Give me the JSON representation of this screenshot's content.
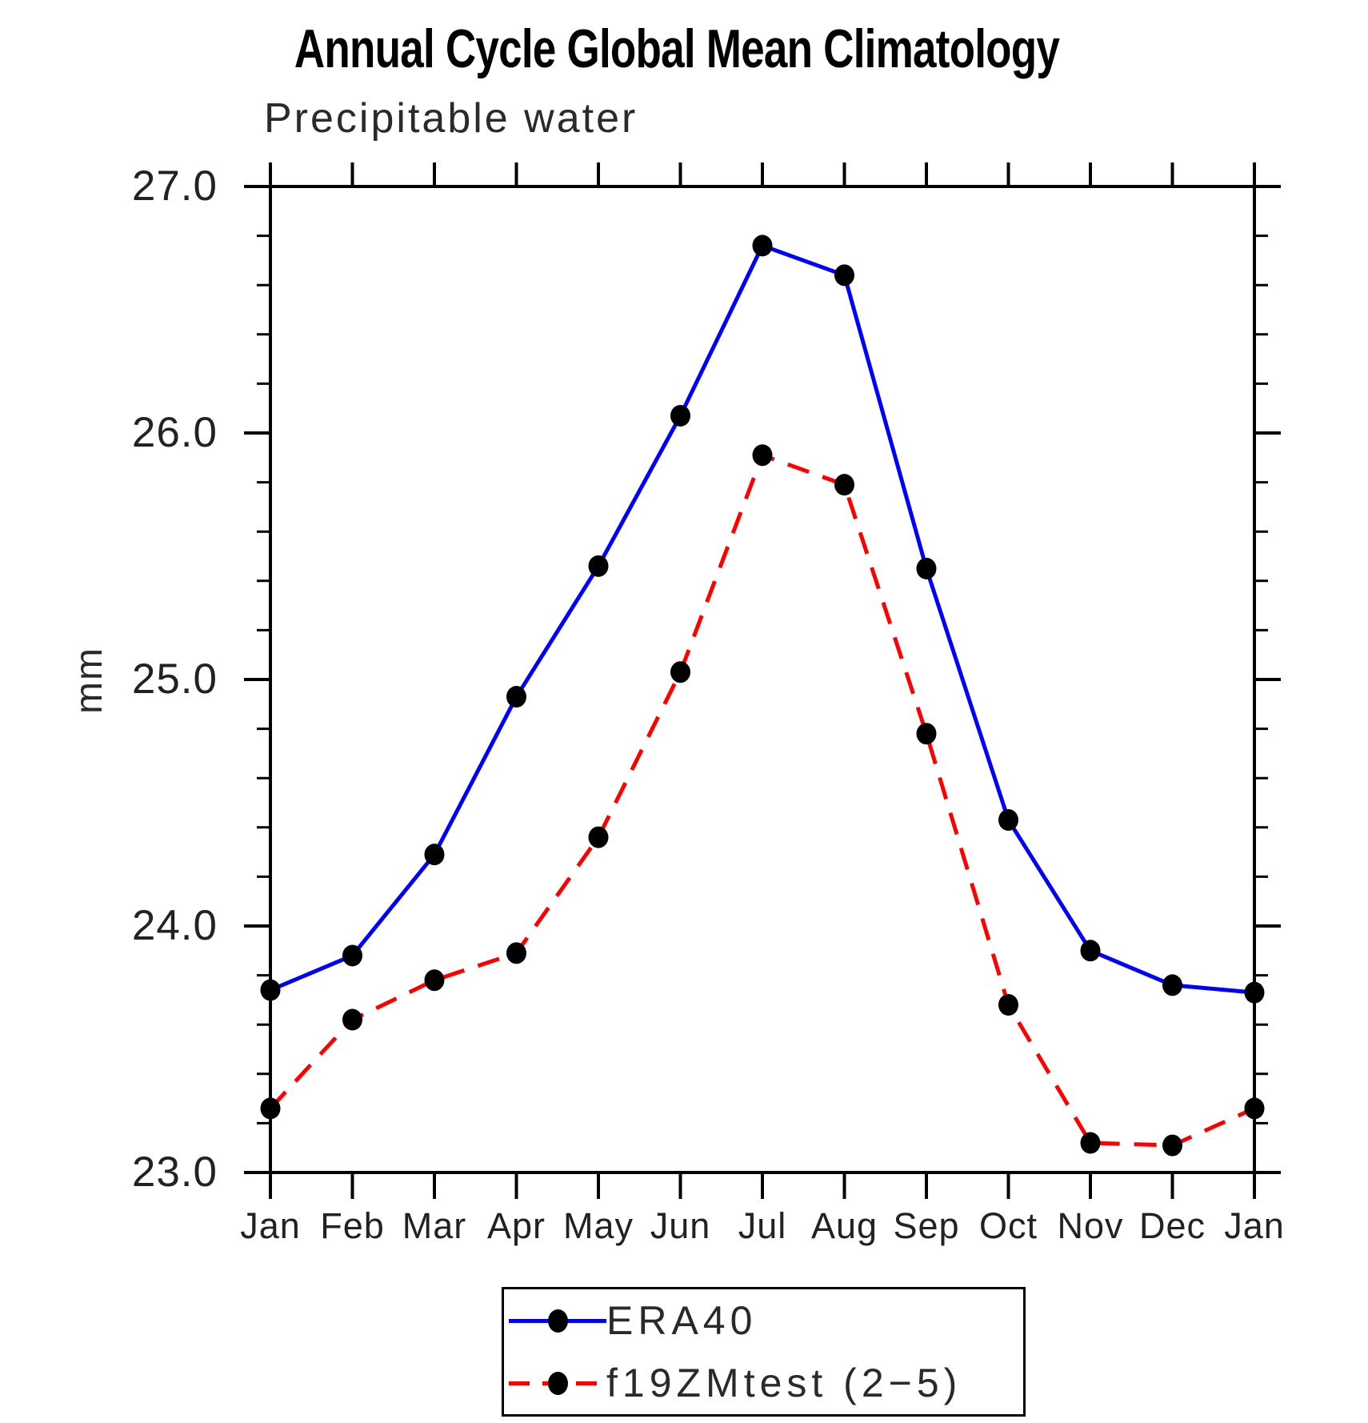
{
  "page": {
    "background": "#ffffff"
  },
  "chart_data": {
    "type": "line",
    "title": "Annual Cycle Global Mean Climatology",
    "subtitle": "Precipitable water",
    "xlabel": "",
    "ylabel": "mm",
    "categories": [
      "Jan",
      "Feb",
      "Mar",
      "Apr",
      "May",
      "Jun",
      "Jul",
      "Aug",
      "Sep",
      "Oct",
      "Nov",
      "Dec",
      "Jan"
    ],
    "y_axis": {
      "min": 23.0,
      "max": 27.0,
      "major_step": 1.0,
      "minor_step": 0.2,
      "tick_labels": [
        "23.0",
        "24.0",
        "25.0",
        "26.0",
        "27.0"
      ]
    },
    "grid": false,
    "axis_color": "#000000",
    "marker_color": "#000000",
    "legend_position": "below-plot-center",
    "series": [
      {
        "name": "ERA40",
        "color": "#0000ff",
        "style": "solid",
        "marker": "filled-circle",
        "values": [
          23.74,
          23.88,
          24.29,
          24.93,
          25.46,
          26.07,
          26.76,
          26.64,
          25.45,
          24.43,
          23.9,
          23.76,
          23.73
        ]
      },
      {
        "name": "f19ZMtest (2−5)",
        "color": "#ff0000",
        "style": "dashed",
        "marker": "filled-circle",
        "values": [
          23.26,
          23.62,
          23.78,
          23.89,
          24.36,
          25.03,
          25.91,
          25.79,
          24.78,
          23.68,
          23.12,
          23.11,
          23.26
        ]
      }
    ]
  }
}
